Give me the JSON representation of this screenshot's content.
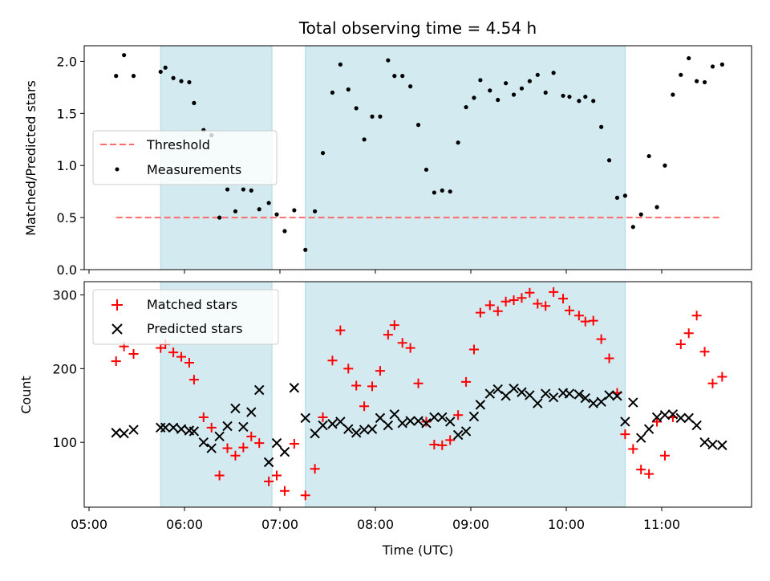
{
  "chart_data": [
    {
      "type": "scatter",
      "title": "Total observing time = 4.54 h",
      "xlabel": "",
      "ylabel": "Matched/Predicted stars",
      "xticks": [
        "05:00",
        "06:00",
        "07:00",
        "08:00",
        "09:00",
        "10:00",
        "11:00"
      ],
      "ylim": [
        0,
        2.15
      ],
      "yticks": [
        "0.0",
        "0.5",
        "1.0",
        "1.5",
        "2.0"
      ],
      "shaded_spans": [
        [
          "05:45",
          "06:55"
        ],
        [
          "07:16",
          "10:37"
        ]
      ],
      "legend_position": "center-left",
      "threshold": {
        "name": "Threshold",
        "value": 0.5,
        "x_start": "05:17",
        "x_end": "11:38",
        "color": "#ff6b6b"
      },
      "series": [
        {
          "name": "Measurements",
          "color": "#000000",
          "x": [
            "05:17",
            "05:22",
            "05:28",
            "05:45",
            "05:48",
            "05:53",
            "05:58",
            "06:03",
            "06:06",
            "06:12",
            "06:17",
            "06:22",
            "06:27",
            "06:32",
            "06:37",
            "06:42",
            "06:47",
            "06:53",
            "06:58",
            "07:03",
            "07:09",
            "07:16",
            "07:22",
            "07:27",
            "07:33",
            "07:38",
            "07:43",
            "07:48",
            "07:53",
            "07:58",
            "08:03",
            "08:08",
            "08:12",
            "08:17",
            "08:22",
            "08:27",
            "08:32",
            "08:37",
            "08:42",
            "08:47",
            "08:52",
            "08:57",
            "09:02",
            "09:06",
            "09:12",
            "09:17",
            "09:22",
            "09:27",
            "09:32",
            "09:37",
            "09:42",
            "09:47",
            "09:52",
            "09:58",
            "10:02",
            "10:08",
            "10:12",
            "10:17",
            "10:22",
            "10:27",
            "10:32",
            "10:37",
            "10:42",
            "10:47",
            "10:52",
            "10:57",
            "11:02",
            "11:07",
            "11:12",
            "11:17",
            "11:22",
            "11:27",
            "11:32",
            "11:38"
          ],
          "y": [
            1.86,
            2.06,
            1.86,
            1.9,
            1.94,
            1.84,
            1.81,
            1.8,
            1.6,
            1.34,
            1.29,
            0.5,
            0.77,
            0.56,
            0.77,
            0.76,
            0.58,
            0.64,
            0.53,
            0.37,
            0.57,
            0.19,
            0.56,
            1.12,
            1.7,
            1.97,
            1.73,
            1.55,
            1.25,
            1.47,
            1.47,
            2.01,
            1.86,
            1.86,
            1.76,
            1.39,
            0.96,
            0.74,
            0.76,
            0.75,
            1.22,
            1.56,
            1.65,
            1.82,
            1.72,
            1.63,
            1.79,
            1.68,
            1.74,
            1.81,
            1.87,
            1.7,
            1.89,
            1.67,
            1.66,
            1.62,
            1.66,
            1.62,
            1.37,
            1.05,
            0.69,
            0.71,
            0.41,
            0.53,
            1.09,
            0.6,
            1.0,
            1.68,
            1.87,
            2.03,
            1.81,
            1.8,
            1.95,
            1.97
          ]
        }
      ]
    },
    {
      "type": "scatter",
      "title": "",
      "xlabel": "Time (UTC)",
      "ylabel": "Count",
      "xticks": [
        "05:00",
        "06:00",
        "07:00",
        "08:00",
        "09:00",
        "10:00",
        "11:00"
      ],
      "ylim": [
        12,
        318
      ],
      "yticks": [
        "100",
        "200",
        "300"
      ],
      "shaded_spans": [
        [
          "05:45",
          "06:55"
        ],
        [
          "07:16",
          "10:37"
        ]
      ],
      "legend_position": "top-left",
      "series": [
        {
          "name": "Matched stars",
          "marker": "plus",
          "color": "#ff0000",
          "x": [
            "05:17",
            "05:22",
            "05:28",
            "05:45",
            "05:48",
            "05:53",
            "05:58",
            "06:03",
            "06:06",
            "06:12",
            "06:17",
            "06:22",
            "06:27",
            "06:32",
            "06:37",
            "06:42",
            "06:47",
            "06:53",
            "06:58",
            "07:03",
            "07:09",
            "07:16",
            "07:22",
            "07:27",
            "07:33",
            "07:38",
            "07:43",
            "07:48",
            "07:53",
            "07:58",
            "08:03",
            "08:08",
            "08:12",
            "08:17",
            "08:22",
            "08:27",
            "08:32",
            "08:37",
            "08:42",
            "08:47",
            "08:52",
            "08:57",
            "09:02",
            "09:06",
            "09:12",
            "09:17",
            "09:22",
            "09:27",
            "09:32",
            "09:37",
            "09:42",
            "09:47",
            "09:52",
            "09:58",
            "10:02",
            "10:08",
            "10:12",
            "10:17",
            "10:22",
            "10:27",
            "10:32",
            "10:37",
            "10:42",
            "10:47",
            "10:52",
            "10:57",
            "11:02",
            "11:07",
            "11:12",
            "11:17",
            "11:22",
            "11:27",
            "11:32",
            "11:38"
          ],
          "y": [
            210,
            230,
            220,
            228,
            233,
            222,
            216,
            208,
            185,
            134,
            120,
            55,
            92,
            82,
            93,
            108,
            99,
            47,
            55,
            34,
            98,
            28,
            64,
            134,
            211,
            252,
            200,
            177,
            149,
            176,
            197,
            246,
            259,
            235,
            228,
            180,
            128,
            97,
            96,
            103,
            137,
            182,
            226,
            276,
            286,
            278,
            291,
            293,
            296,
            303,
            288,
            285,
            304,
            295,
            279,
            272,
            264,
            265,
            240,
            214,
            167,
            111,
            91,
            63,
            57,
            128,
            82,
            134,
            233,
            248,
            272,
            223,
            180,
            189
          ],
          "y_note_skip": true
        },
        {
          "name": "Predicted stars",
          "marker": "x",
          "color": "#000000",
          "x": [
            "05:17",
            "05:22",
            "05:28",
            "05:45",
            "05:48",
            "05:53",
            "05:58",
            "06:03",
            "06:06",
            "06:12",
            "06:17",
            "06:22",
            "06:27",
            "06:32",
            "06:37",
            "06:42",
            "06:47",
            "06:53",
            "06:58",
            "07:03",
            "07:09",
            "07:16",
            "07:22",
            "07:27",
            "07:33",
            "07:38",
            "07:43",
            "07:48",
            "07:53",
            "07:58",
            "08:03",
            "08:08",
            "08:12",
            "08:17",
            "08:22",
            "08:27",
            "08:32",
            "08:37",
            "08:42",
            "08:47",
            "08:52",
            "08:57",
            "09:02",
            "09:06",
            "09:12",
            "09:17",
            "09:22",
            "09:27",
            "09:32",
            "09:37",
            "09:42",
            "09:47",
            "09:52",
            "09:58",
            "10:02",
            "10:08",
            "10:12",
            "10:17",
            "10:22",
            "10:27",
            "10:32",
            "10:37",
            "10:42",
            "10:47",
            "10:52",
            "10:57",
            "11:02",
            "11:07",
            "11:12",
            "11:17",
            "11:22",
            "11:27",
            "11:32",
            "11:38"
          ],
          "y": [
            113,
            112,
            117,
            120,
            120,
            120,
            118,
            116,
            115,
            100,
            92,
            108,
            122,
            146,
            121,
            141,
            171,
            73,
            99,
            87,
            174,
            133,
            112,
            123,
            125,
            128,
            118,
            113,
            117,
            118,
            133,
            123,
            138,
            126,
            129,
            129,
            126,
            134,
            134,
            128,
            110,
            115,
            135,
            151,
            166,
            172,
            163,
            173,
            168,
            164,
            153,
            166,
            161,
            167,
            166,
            165,
            160,
            153,
            155,
            164,
            163,
            128,
            154,
            106,
            118,
            134,
            137,
            138,
            133,
            133,
            123,
            100,
            97,
            96
          ]
        }
      ]
    }
  ]
}
